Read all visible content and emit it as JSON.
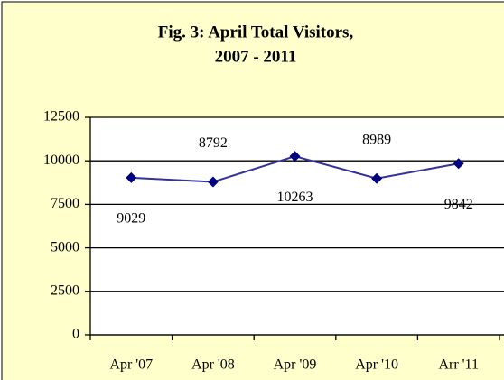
{
  "chart_data": {
    "type": "line",
    "title": [
      "Fig. 3: April Total Visitors,",
      "2007 - 2011"
    ],
    "categories": [
      "Apr '07",
      "Apr '08",
      "Apr '09",
      "Apr '10",
      "Arr '11"
    ],
    "series": [
      {
        "name": "Visitors",
        "color": "#333399",
        "marker_color": "#000080",
        "values": [
          9029,
          8792,
          10263,
          8989,
          9842
        ]
      }
    ],
    "ylim": [
      0,
      12500
    ],
    "yticks": [
      0,
      2500,
      5000,
      7500,
      10000,
      12500
    ],
    "grid": true,
    "data_label_side": [
      "below",
      "above",
      "below",
      "above",
      "below"
    ]
  }
}
